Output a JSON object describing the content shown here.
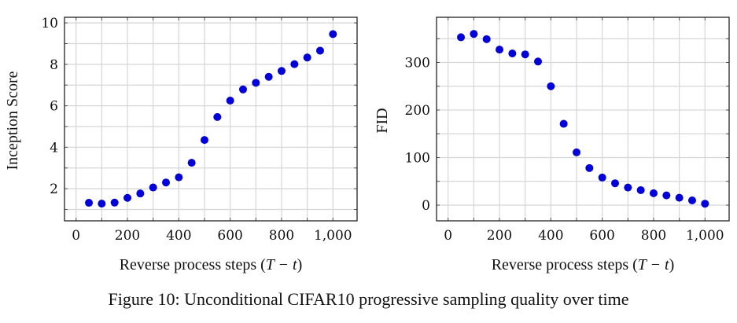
{
  "figure": {
    "caption": "Figure 10: Unconditional CIFAR10 progressive sampling quality over time"
  },
  "chart_data": [
    {
      "type": "scatter",
      "title": "",
      "xlabel_text": "Reverse process steps (",
      "xlabel_math": "T − t",
      "xlabel_close": ")",
      "xlabel": "Reverse process steps (T − t)",
      "ylabel": "Inception Score",
      "xlim": [
        -45,
        1094
      ],
      "ylim": [
        0.45,
        10.27
      ],
      "xticks": [
        0,
        200,
        400,
        600,
        800,
        1000
      ],
      "xtick_labels": [
        "0",
        "200",
        "400",
        "600",
        "800",
        "1,000"
      ],
      "xgrid_step": 100,
      "yticks": [
        2,
        4,
        6,
        8,
        10
      ],
      "ytick_labels": [
        "2",
        "4",
        "6",
        "8",
        "10"
      ],
      "ygrid_step": 1,
      "grid": true,
      "color": "#0000e0",
      "x": [
        50,
        100,
        150,
        200,
        250,
        300,
        350,
        400,
        450,
        500,
        550,
        600,
        650,
        700,
        750,
        800,
        850,
        900,
        950,
        1000
      ],
      "y": [
        1.32,
        1.28,
        1.33,
        1.56,
        1.77,
        2.06,
        2.3,
        2.55,
        3.25,
        4.35,
        5.46,
        6.25,
        6.79,
        7.11,
        7.4,
        7.68,
        8.01,
        8.33,
        8.66,
        9.46
      ]
    },
    {
      "type": "scatter",
      "title": "",
      "xlabel_text": "Reverse process steps (",
      "xlabel_math": "T − t",
      "xlabel_close": ")",
      "xlabel": "Reverse process steps (T − t)",
      "ylabel": "FID",
      "xlim": [
        -45,
        1094
      ],
      "ylim": [
        -33,
        395
      ],
      "xticks": [
        0,
        200,
        400,
        600,
        800,
        1000
      ],
      "xtick_labels": [
        "0",
        "200",
        "400",
        "600",
        "800",
        "1,000"
      ],
      "xgrid_step": 100,
      "yticks": [
        0,
        100,
        200,
        300
      ],
      "ytick_labels": [
        "0",
        "100",
        "200",
        "300"
      ],
      "ygrid_step": 50,
      "grid": true,
      "color": "#0000e0",
      "x": [
        50,
        100,
        150,
        200,
        250,
        300,
        350,
        400,
        450,
        500,
        550,
        600,
        650,
        700,
        750,
        800,
        850,
        900,
        950,
        1000
      ],
      "y": [
        353,
        360,
        349,
        327,
        319,
        317,
        302,
        250,
        171,
        111,
        78,
        58,
        46,
        37,
        31.5,
        25,
        20.5,
        15.5,
        10,
        3
      ]
    }
  ]
}
